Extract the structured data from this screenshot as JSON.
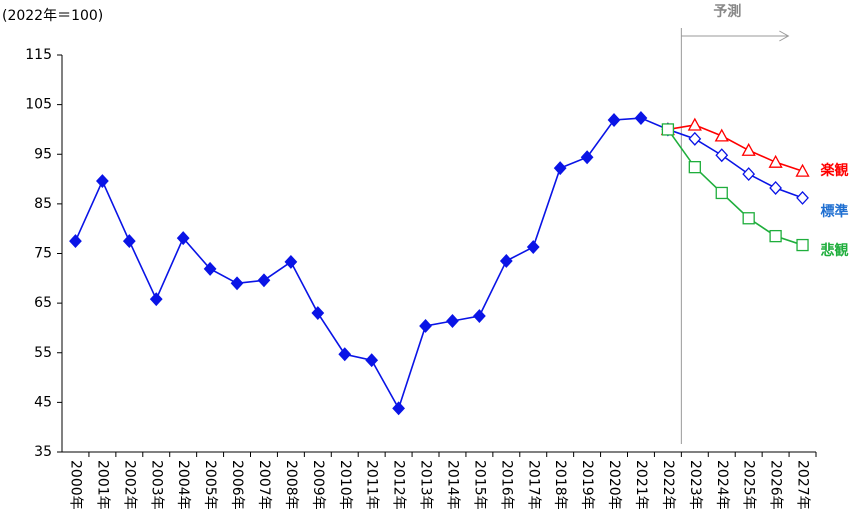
{
  "chart_data": {
    "type": "line",
    "y_unit_label": "(2022年＝100)",
    "annotation": "予測",
    "categories": [
      "2000年",
      "2001年",
      "2002年",
      "2003年",
      "2004年",
      "2005年",
      "2006年",
      "2007年",
      "2008年",
      "2009年",
      "2010年",
      "2011年",
      "2012年",
      "2013年",
      "2014年",
      "2015年",
      "2016年",
      "2017年",
      "2018年",
      "2019年",
      "2020年",
      "2021年",
      "2022年",
      "2023年",
      "2024年",
      "2025年",
      "2026年",
      "2027年"
    ],
    "series": [
      {
        "color": "#0a14e6",
        "marker": "diamond",
        "filled": true,
        "values": [
          77.5,
          89.6,
          77.5,
          65.8,
          78.1,
          71.9,
          69.0,
          69.6,
          73.3,
          63.0,
          54.7,
          53.5,
          43.8,
          60.4,
          61.4,
          62.4,
          73.5,
          76.3,
          92.2,
          94.4,
          101.9,
          102.3,
          100,
          null,
          null,
          null,
          null,
          null
        ]
      },
      {
        "name": "楽観",
        "color": "#ff0000",
        "marker": "triangle",
        "filled": false,
        "values": [
          null,
          null,
          null,
          null,
          null,
          null,
          null,
          null,
          null,
          null,
          null,
          null,
          null,
          null,
          null,
          null,
          null,
          null,
          null,
          null,
          null,
          null,
          100,
          100.9,
          98.7,
          95.8,
          93.4,
          91.6
        ]
      },
      {
        "name": "標準",
        "color": "#0a14e6",
        "label_color": "#1f6fd1",
        "marker": "diamond",
        "filled": false,
        "values": [
          null,
          null,
          null,
          null,
          null,
          null,
          null,
          null,
          null,
          null,
          null,
          null,
          null,
          null,
          null,
          null,
          null,
          null,
          null,
          null,
          null,
          null,
          100,
          98.1,
          94.8,
          91.0,
          88.2,
          86.2
        ]
      },
      {
        "name": "悲観",
        "color": "#1fae3c",
        "marker": "square",
        "filled": false,
        "values": [
          null,
          null,
          null,
          null,
          null,
          null,
          null,
          null,
          null,
          null,
          null,
          null,
          null,
          null,
          null,
          null,
          null,
          null,
          null,
          null,
          null,
          null,
          100,
          92.4,
          87.2,
          82.1,
          78.5,
          76.7
        ]
      }
    ],
    "ylim": [
      35,
      115
    ],
    "yticks": [
      35,
      45,
      55,
      65,
      75,
      85,
      95,
      105,
      115
    ],
    "grid": false
  }
}
